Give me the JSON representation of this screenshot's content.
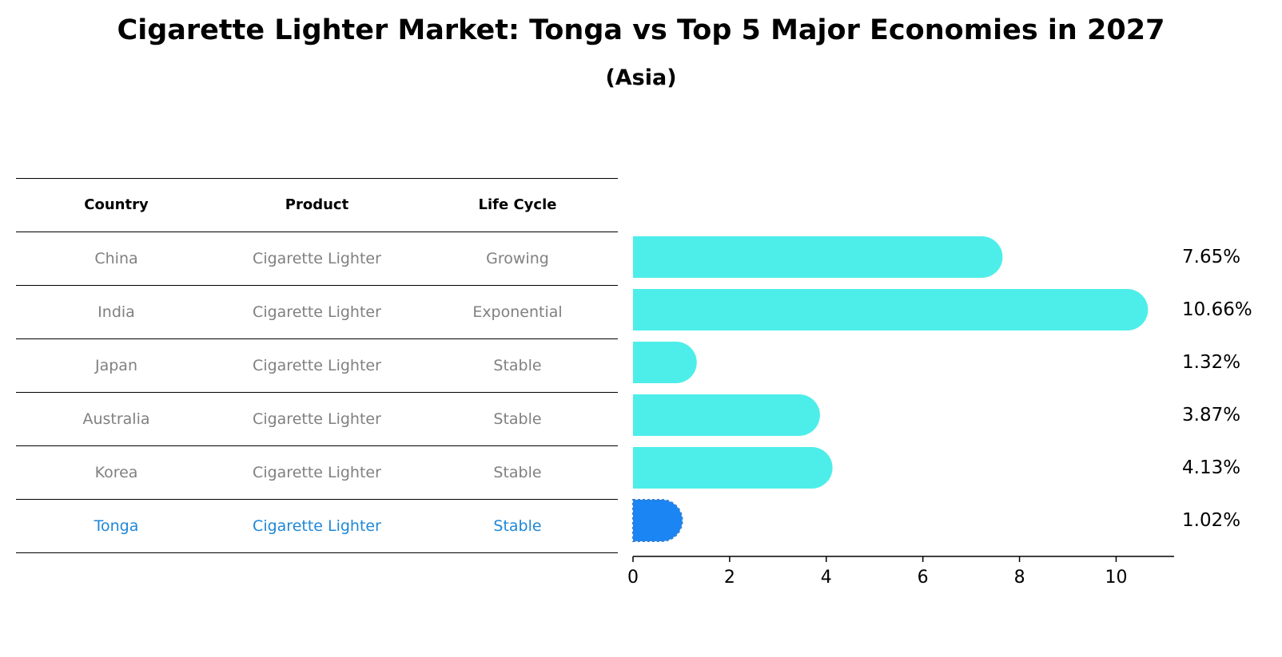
{
  "title": "Cigarette Lighter Market: Tonga vs Top 5 Major Economies in 2027",
  "subtitle": "(Asia)",
  "table": {
    "headers": [
      "Country",
      "Product",
      "Life Cycle"
    ],
    "rows": [
      {
        "country": "China",
        "product": "Cigarette Lighter",
        "life_cycle": "Growing"
      },
      {
        "country": "India",
        "product": "Cigarette Lighter",
        "life_cycle": "Exponential"
      },
      {
        "country": "Japan",
        "product": "Cigarette Lighter",
        "life_cycle": "Stable"
      },
      {
        "country": "Australia",
        "product": "Cigarette Lighter",
        "life_cycle": "Stable"
      },
      {
        "country": "Korea",
        "product": "Cigarette Lighter",
        "life_cycle": "Stable"
      },
      {
        "country": "Tonga",
        "product": "Cigarette Lighter",
        "life_cycle": "Stable"
      }
    ]
  },
  "colors": {
    "bar": "#4deee9",
    "highlight_bar": "#1a85f3",
    "highlight_text": "#1f87d6",
    "muted_text": "#808080"
  },
  "chart_data": {
    "type": "bar",
    "orientation": "horizontal",
    "categories": [
      "China",
      "India",
      "Japan",
      "Australia",
      "Korea",
      "Tonga"
    ],
    "values": [
      7.65,
      10.66,
      1.32,
      3.87,
      4.13,
      1.02
    ],
    "value_labels": [
      "7.65%",
      "10.66%",
      "1.32%",
      "3.87%",
      "4.13%",
      "1.02%"
    ],
    "highlight_category": "Tonga",
    "xlim": [
      0,
      11.2
    ],
    "xticks": [
      0,
      2,
      4,
      6,
      8,
      10
    ],
    "xlabel": "",
    "ylabel": "",
    "grid": false
  }
}
